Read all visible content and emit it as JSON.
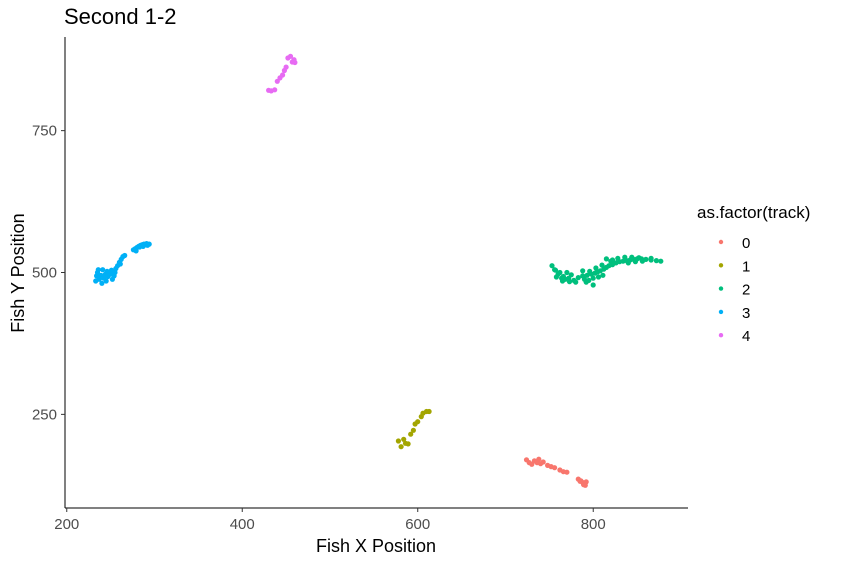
{
  "chart_data": {
    "type": "scatter",
    "title": "Second 1-2",
    "xlabel": "Fish X Position",
    "ylabel": "Fish Y Position",
    "xlim": [
      198,
      908
    ],
    "ylim": [
      85,
      915
    ],
    "x_ticks": [
      200,
      400,
      600,
      800
    ],
    "y_ticks": [
      250,
      500,
      750
    ],
    "grid": false,
    "legend": {
      "title": "as.factor(track)",
      "position": "right"
    },
    "series": [
      {
        "name": "0",
        "color": "#F8766D",
        "points": [
          [
            724,
            170
          ],
          [
            727,
            165
          ],
          [
            730,
            162
          ],
          [
            733,
            168
          ],
          [
            736,
            165
          ],
          [
            738,
            171
          ],
          [
            740,
            163
          ],
          [
            743,
            166
          ],
          [
            748,
            160
          ],
          [
            752,
            158
          ],
          [
            756,
            156
          ],
          [
            762,
            152
          ],
          [
            766,
            149
          ],
          [
            770,
            148
          ],
          [
            783,
            136
          ],
          [
            786,
            133
          ],
          [
            788,
            130
          ],
          [
            790,
            128
          ],
          [
            792,
            131
          ],
          [
            789,
            126
          ],
          [
            785,
            132
          ],
          [
            791,
            125
          ]
        ]
      },
      {
        "name": "1",
        "color": "#A3A500",
        "points": [
          [
            578,
            203
          ],
          [
            581,
            193
          ],
          [
            584,
            206
          ],
          [
            586,
            199
          ],
          [
            589,
            198
          ],
          [
            592,
            215
          ],
          [
            595,
            222
          ],
          [
            597,
            233
          ],
          [
            600,
            237
          ],
          [
            604,
            246
          ],
          [
            606,
            252
          ],
          [
            610,
            255
          ],
          [
            613,
            255
          ]
        ]
      },
      {
        "name": "2",
        "color": "#00BF7D",
        "points": [
          [
            753,
            512
          ],
          [
            756,
            505
          ],
          [
            760,
            497
          ],
          [
            764,
            490
          ],
          [
            768,
            488
          ],
          [
            773,
            484
          ],
          [
            778,
            486
          ],
          [
            783,
            491
          ],
          [
            788,
            494
          ],
          [
            793,
            495
          ],
          [
            798,
            497
          ],
          [
            802,
            499
          ],
          [
            805,
            501
          ],
          [
            808,
            503
          ],
          [
            812,
            506
          ],
          [
            815,
            509
          ],
          [
            818,
            512
          ],
          [
            822,
            514
          ],
          [
            826,
            517
          ],
          [
            830,
            519
          ],
          [
            834,
            520
          ],
          [
            838,
            521
          ],
          [
            842,
            522
          ],
          [
            846,
            523
          ],
          [
            850,
            524
          ],
          [
            855,
            524
          ],
          [
            860,
            523
          ],
          [
            866,
            522
          ],
          [
            872,
            521
          ],
          [
            877,
            520
          ],
          [
            790,
            488
          ],
          [
            795,
            486
          ],
          [
            800,
            490
          ],
          [
            806,
            492
          ],
          [
            811,
            495
          ],
          [
            770,
            500
          ],
          [
            775,
            496
          ],
          [
            758,
            492
          ],
          [
            766,
            493
          ],
          [
            780,
            483
          ],
          [
            796,
            502
          ],
          [
            803,
            508
          ],
          [
            820,
            520
          ],
          [
            828,
            525
          ],
          [
            836,
            527
          ],
          [
            844,
            527
          ],
          [
            852,
            526
          ],
          [
            765,
            485
          ],
          [
            772,
            490
          ],
          [
            762,
            500
          ],
          [
            788,
            503
          ],
          [
            810,
            513
          ],
          [
            815,
            524
          ],
          [
            822,
            522
          ],
          [
            792,
            483
          ],
          [
            757,
            504
          ],
          [
            840,
            517
          ],
          [
            848,
            519
          ],
          [
            856,
            520
          ],
          [
            866,
            525
          ],
          [
            800,
            478
          ]
        ]
      },
      {
        "name": "3",
        "color": "#00B0F6",
        "points": [
          [
            233,
            485
          ],
          [
            234,
            494
          ],
          [
            235,
            500
          ],
          [
            237,
            488
          ],
          [
            239,
            495
          ],
          [
            240,
            481
          ],
          [
            242,
            490
          ],
          [
            244,
            497
          ],
          [
            246,
            502
          ],
          [
            247,
            493
          ],
          [
            249,
            498
          ],
          [
            251,
            504
          ],
          [
            252,
            488
          ],
          [
            254,
            494
          ],
          [
            256,
            507
          ],
          [
            258,
            512
          ],
          [
            260,
            518
          ],
          [
            262,
            523
          ],
          [
            264,
            528
          ],
          [
            266,
            530
          ],
          [
            276,
            540
          ],
          [
            278,
            542
          ],
          [
            280,
            544
          ],
          [
            282,
            546
          ],
          [
            284,
            548
          ],
          [
            286,
            549
          ],
          [
            288,
            550
          ],
          [
            290,
            549
          ],
          [
            292,
            548
          ],
          [
            294,
            550
          ],
          [
            279,
            538
          ],
          [
            283,
            545
          ],
          [
            287,
            546
          ],
          [
            291,
            551
          ],
          [
            236,
            505
          ],
          [
            241,
            505
          ],
          [
            245,
            485
          ],
          [
            250,
            497
          ],
          [
            255,
            500
          ],
          [
            261,
            515
          ]
        ]
      },
      {
        "name": "4",
        "color": "#E76BF3",
        "points": [
          [
            430,
            821
          ],
          [
            433,
            820
          ],
          [
            437,
            822
          ],
          [
            440,
            837
          ],
          [
            443,
            843
          ],
          [
            446,
            848
          ],
          [
            448,
            856
          ],
          [
            450,
            862
          ],
          [
            452,
            878
          ],
          [
            455,
            881
          ],
          [
            457,
            871
          ],
          [
            459,
            875
          ],
          [
            460,
            870
          ]
        ]
      }
    ]
  }
}
